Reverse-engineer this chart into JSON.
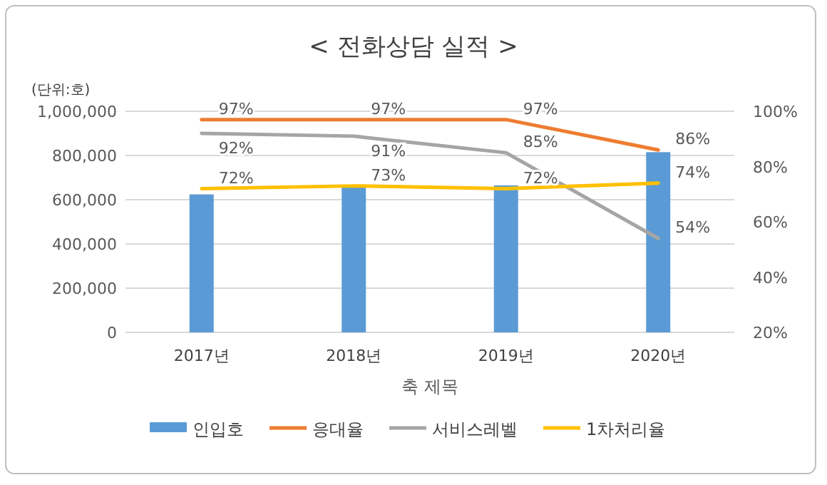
{
  "chart_data": {
    "type": "bar",
    "title": "< 전화상담 실적 >",
    "ylabel": "(단위:호)",
    "xlabel": "축 제목",
    "categories": [
      "2017년",
      "2018년",
      "2019년",
      "2020년"
    ],
    "series": [
      {
        "name": "인입호",
        "color": "#5b9bd5",
        "values": [
          624000,
          656000,
          665000,
          815000
        ]
      },
      {
        "name": "응대율",
        "type": "line",
        "axis": "y2",
        "color": "#ed7d31",
        "values": [
          97,
          97,
          97,
          86
        ],
        "value_labels": [
          "97%",
          "97%",
          "97%",
          "86%"
        ]
      },
      {
        "name": "서비스레벨",
        "type": "line",
        "axis": "y2",
        "color": "#a5a5a5",
        "values": [
          92,
          91,
          85,
          54
        ],
        "value_labels": [
          "92%",
          "91%",
          "85%",
          "54%"
        ]
      },
      {
        "name": "1차처리율",
        "type": "line",
        "axis": "y2",
        "color": "#ffc000",
        "values": [
          72,
          73,
          72,
          74
        ],
        "value_labels": [
          "72%",
          "73%",
          "72%",
          "74%"
        ]
      }
    ],
    "ylim": [
      0,
      1000000
    ],
    "yticks": [
      0,
      {
        "value": 200000,
        "label": "200,000"
      },
      {
        "value": 400000,
        "label": "400,000"
      },
      {
        "value": 600000,
        "label": "600,000"
      },
      {
        "value": 800000,
        "label": "800,000"
      },
      {
        "value": 1000000,
        "label": "1,000,000"
      }
    ],
    "y2lim": [
      20,
      100
    ],
    "y2ticks": [
      {
        "value": 20,
        "label": "20%"
      },
      {
        "value": 40,
        "label": "40%"
      },
      {
        "value": 60,
        "label": "60%"
      },
      {
        "value": 80,
        "label": "80%"
      },
      {
        "value": 100,
        "label": "100%"
      }
    ],
    "grid": "y",
    "legend": "bottom"
  }
}
